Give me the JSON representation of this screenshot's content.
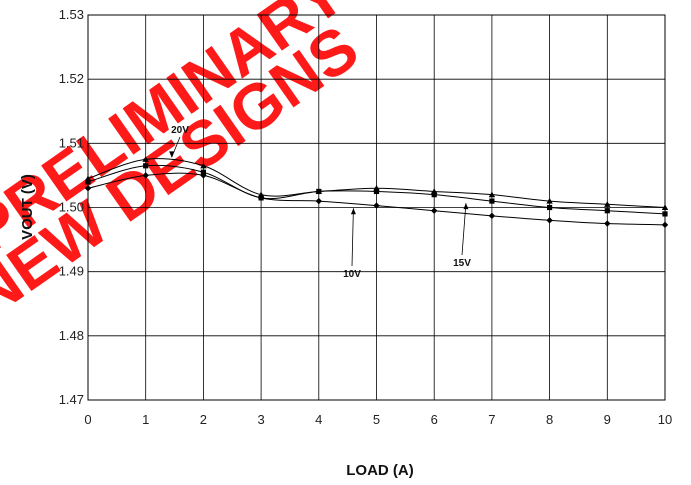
{
  "chart_data": {
    "type": "line",
    "title": "",
    "xlabel": "LOAD (A)",
    "ylabel": "VOUT (V)",
    "xlim": [
      0,
      10
    ],
    "ylim": [
      1.47,
      1.53
    ],
    "x_ticks": [
      "0",
      "1",
      "2",
      "3",
      "4",
      "5",
      "6",
      "7",
      "8",
      "9",
      "10"
    ],
    "y_ticks": [
      "1.53",
      "1.52",
      "1.51",
      "1.50",
      "1.49",
      "1.48",
      "1.47"
    ],
    "grid": true,
    "legend": "none",
    "x": [
      0,
      1,
      2,
      3,
      4,
      5,
      6,
      7,
      8,
      9,
      10
    ],
    "series": [
      {
        "name": "20V",
        "marker": "triangle",
        "color": "#000000",
        "values": [
          1.5045,
          1.5075,
          1.5065,
          1.502,
          1.5025,
          1.503,
          1.5025,
          1.502,
          1.501,
          1.5005,
          1.5
        ]
      },
      {
        "name": "15V",
        "marker": "square",
        "color": "#000000",
        "values": [
          1.504,
          1.5065,
          1.5055,
          1.5015,
          1.5025,
          1.5025,
          1.502,
          1.501,
          1.5,
          1.4995,
          1.499
        ]
      },
      {
        "name": "10V",
        "marker": "diamond",
        "color": "#000000",
        "values": [
          1.503,
          1.505,
          1.505,
          1.5015,
          1.501,
          1.5003,
          1.4995,
          1.4987,
          1.498,
          1.4975,
          1.4973
        ]
      }
    ],
    "annotations": [
      {
        "text": "20V",
        "target_x": 1.45,
        "target_y": 1.5075,
        "series": "20V"
      },
      {
        "text": "15V",
        "target_x": 6.55,
        "target_y": 1.5013,
        "series": "15V"
      },
      {
        "text": "10V",
        "target_x": 4.6,
        "target_y": 1.5005,
        "series": "10V"
      }
    ]
  },
  "watermark": {
    "lines": [
      "PRELIMINARY",
      "NEW DESIGNS"
    ],
    "color": "#ff1a1a"
  }
}
